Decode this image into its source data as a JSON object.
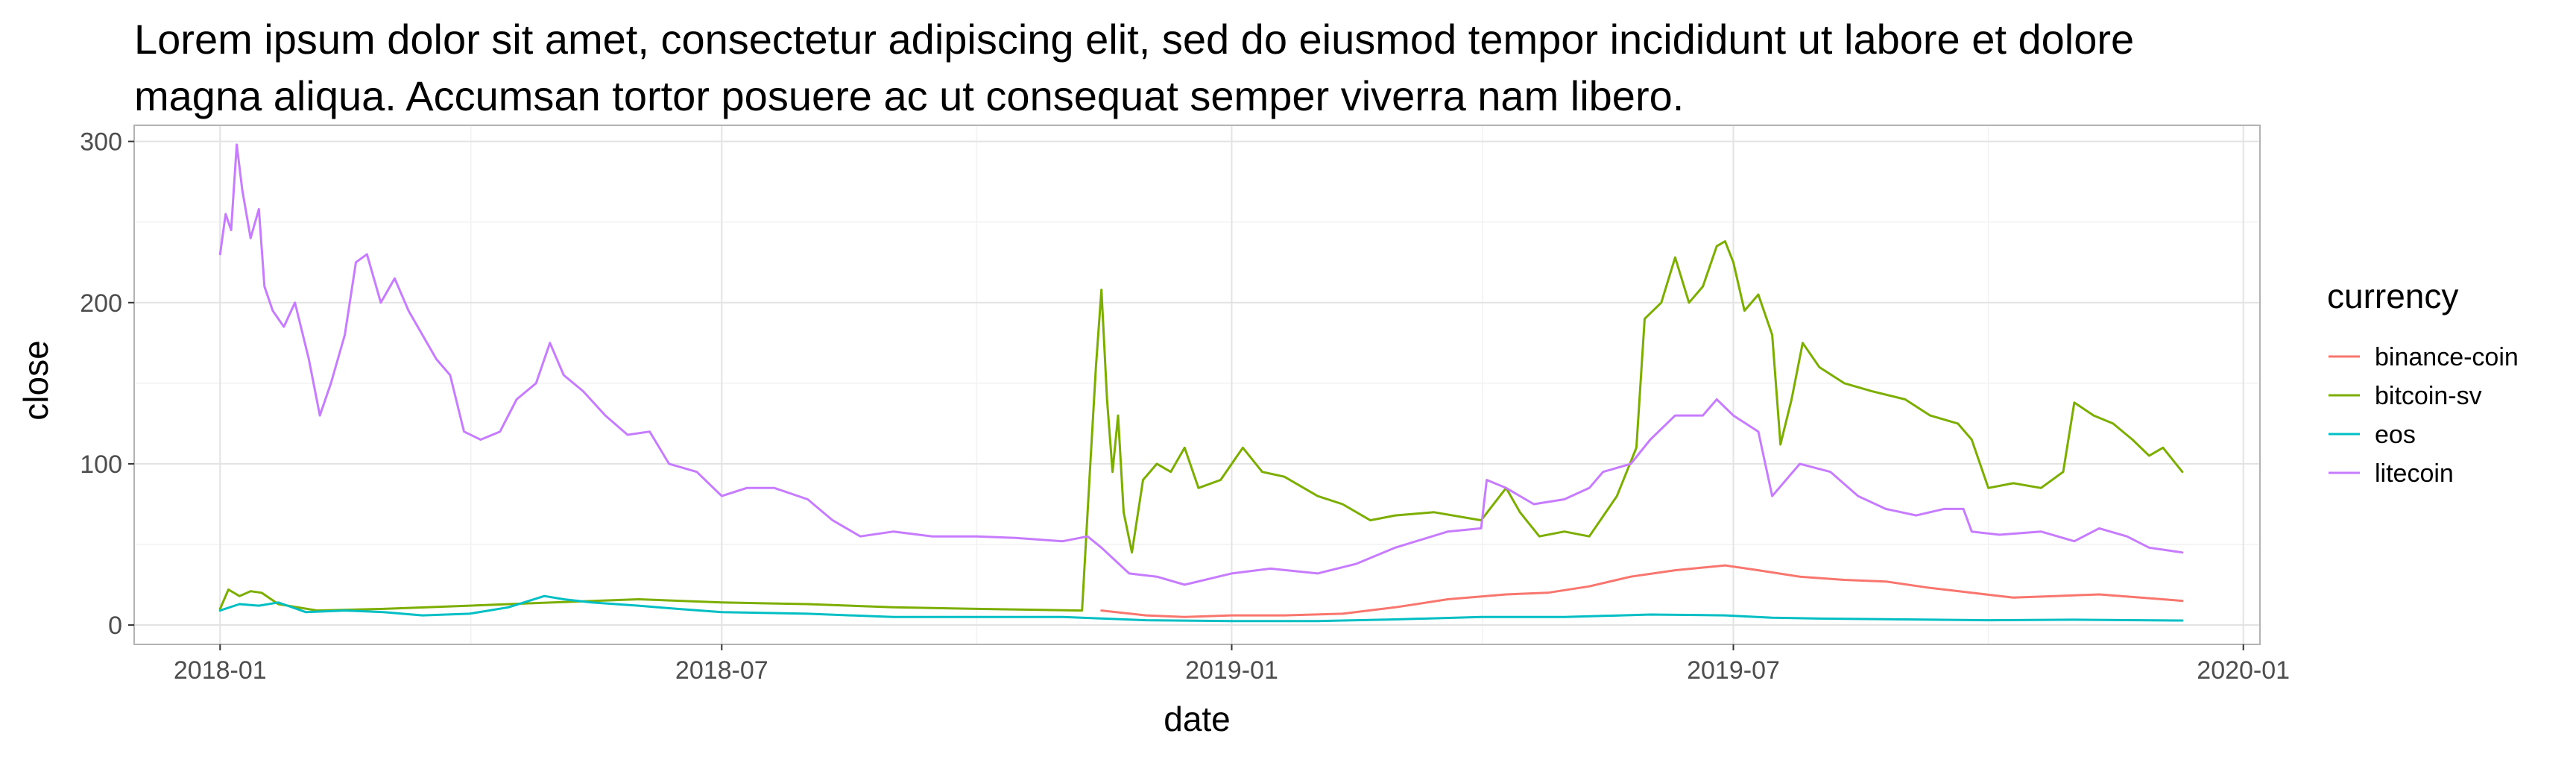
{
  "chart_data": {
    "type": "line",
    "title_lines": [
      "Lorem ipsum dolor sit amet, consectetur adipiscing elit, sed do eiusmod tempor incididunt ut labore et dolore",
      "magna aliqua. Accumsan tortor posuere ac ut consequat semper viverra nam libero."
    ],
    "xlabel": "date",
    "ylabel": "close",
    "xlim": [
      "2017-12-01",
      "2020-01-07"
    ],
    "ylim": [
      -12,
      310
    ],
    "x_ticks": [
      "2018-01-01",
      "2018-07-01",
      "2019-01-01",
      "2019-07-01",
      "2020-01-01"
    ],
    "x_tick_labels": [
      "2018-01",
      "2018-07",
      "2019-01",
      "2019-07",
      "2020-01"
    ],
    "y_ticks": [
      0,
      100,
      200,
      300
    ],
    "y_tick_labels": [
      "0",
      "100",
      "200",
      "300"
    ],
    "grid": true,
    "legend_title": "currency",
    "legend_position": "right",
    "series": [
      {
        "name": "binance-coin",
        "color": "#F8766D",
        "points": [
          [
            "2018-11-15",
            9
          ],
          [
            "2018-12-01",
            6
          ],
          [
            "2018-12-15",
            5
          ],
          [
            "2019-01-01",
            6
          ],
          [
            "2019-01-20",
            6
          ],
          [
            "2019-02-10",
            7
          ],
          [
            "2019-03-01",
            11
          ],
          [
            "2019-03-20",
            16
          ],
          [
            "2019-04-10",
            19
          ],
          [
            "2019-04-25",
            20
          ],
          [
            "2019-05-10",
            24
          ],
          [
            "2019-05-25",
            30
          ],
          [
            "2019-06-10",
            34
          ],
          [
            "2019-06-28",
            37
          ],
          [
            "2019-07-10",
            34
          ],
          [
            "2019-07-25",
            30
          ],
          [
            "2019-08-10",
            28
          ],
          [
            "2019-08-25",
            27
          ],
          [
            "2019-09-10",
            23
          ],
          [
            "2019-09-25",
            20
          ],
          [
            "2019-10-10",
            17
          ],
          [
            "2019-10-25",
            18
          ],
          [
            "2019-11-10",
            19
          ],
          [
            "2019-11-25",
            17
          ],
          [
            "2019-12-10",
            15
          ]
        ]
      },
      {
        "name": "bitcoin-sv",
        "color": "#7CAE00",
        "points": [
          [
            "2018-01-01",
            10
          ],
          [
            "2018-01-04",
            22
          ],
          [
            "2018-01-08",
            18
          ],
          [
            "2018-01-12",
            21
          ],
          [
            "2018-01-16",
            20
          ],
          [
            "2018-01-22",
            13
          ],
          [
            "2018-02-05",
            9
          ],
          [
            "2018-03-01",
            10
          ],
          [
            "2018-04-01",
            12
          ],
          [
            "2018-05-01",
            14
          ],
          [
            "2018-06-01",
            16
          ],
          [
            "2018-07-01",
            14
          ],
          [
            "2018-08-01",
            13
          ],
          [
            "2018-09-01",
            11
          ],
          [
            "2018-10-01",
            10
          ],
          [
            "2018-11-08",
            9
          ],
          [
            "2018-11-11",
            100
          ],
          [
            "2018-11-13",
            160
          ],
          [
            "2018-11-15",
            208
          ],
          [
            "2018-11-17",
            140
          ],
          [
            "2018-11-19",
            95
          ],
          [
            "2018-11-21",
            130
          ],
          [
            "2018-11-23",
            70
          ],
          [
            "2018-11-26",
            45
          ],
          [
            "2018-11-30",
            90
          ],
          [
            "2018-12-05",
            100
          ],
          [
            "2018-12-10",
            95
          ],
          [
            "2018-12-15",
            110
          ],
          [
            "2018-12-20",
            85
          ],
          [
            "2018-12-28",
            90
          ],
          [
            "2019-01-05",
            110
          ],
          [
            "2019-01-12",
            95
          ],
          [
            "2019-01-20",
            92
          ],
          [
            "2019-02-01",
            80
          ],
          [
            "2019-02-10",
            75
          ],
          [
            "2019-02-20",
            65
          ],
          [
            "2019-03-01",
            68
          ],
          [
            "2019-03-15",
            70
          ],
          [
            "2019-04-01",
            65
          ],
          [
            "2019-04-10",
            85
          ],
          [
            "2019-04-15",
            70
          ],
          [
            "2019-04-22",
            55
          ],
          [
            "2019-05-01",
            58
          ],
          [
            "2019-05-10",
            55
          ],
          [
            "2019-05-20",
            80
          ],
          [
            "2019-05-27",
            110
          ],
          [
            "2019-05-30",
            190
          ],
          [
            "2019-06-05",
            200
          ],
          [
            "2019-06-10",
            228
          ],
          [
            "2019-06-15",
            200
          ],
          [
            "2019-06-20",
            210
          ],
          [
            "2019-06-25",
            235
          ],
          [
            "2019-06-28",
            238
          ],
          [
            "2019-07-01",
            225
          ],
          [
            "2019-07-05",
            195
          ],
          [
            "2019-07-10",
            205
          ],
          [
            "2019-07-15",
            180
          ],
          [
            "2019-07-18",
            112
          ],
          [
            "2019-07-22",
            140
          ],
          [
            "2019-07-26",
            175
          ],
          [
            "2019-08-01",
            160
          ],
          [
            "2019-08-10",
            150
          ],
          [
            "2019-08-20",
            145
          ],
          [
            "2019-09-01",
            140
          ],
          [
            "2019-09-10",
            130
          ],
          [
            "2019-09-20",
            125
          ],
          [
            "2019-09-25",
            115
          ],
          [
            "2019-10-01",
            85
          ],
          [
            "2019-10-10",
            88
          ],
          [
            "2019-10-20",
            85
          ],
          [
            "2019-10-28",
            95
          ],
          [
            "2019-11-01",
            138
          ],
          [
            "2019-11-08",
            130
          ],
          [
            "2019-11-15",
            125
          ],
          [
            "2019-11-22",
            115
          ],
          [
            "2019-11-28",
            105
          ],
          [
            "2019-12-03",
            110
          ],
          [
            "2019-12-10",
            95
          ]
        ]
      },
      {
        "name": "eos",
        "color": "#00BFC4",
        "points": [
          [
            "2018-01-01",
            9
          ],
          [
            "2018-01-08",
            13
          ],
          [
            "2018-01-15",
            12
          ],
          [
            "2018-01-22",
            14
          ],
          [
            "2018-02-01",
            8
          ],
          [
            "2018-02-15",
            9
          ],
          [
            "2018-03-01",
            8
          ],
          [
            "2018-03-15",
            6
          ],
          [
            "2018-04-01",
            7
          ],
          [
            "2018-04-15",
            11
          ],
          [
            "2018-04-28",
            18
          ],
          [
            "2018-05-05",
            16
          ],
          [
            "2018-05-15",
            14
          ],
          [
            "2018-06-01",
            12
          ],
          [
            "2018-06-15",
            10
          ],
          [
            "2018-07-01",
            8
          ],
          [
            "2018-08-01",
            7
          ],
          [
            "2018-09-01",
            5
          ],
          [
            "2018-10-01",
            5
          ],
          [
            "2018-11-01",
            5
          ],
          [
            "2018-12-01",
            3
          ],
          [
            "2019-01-01",
            2.5
          ],
          [
            "2019-02-01",
            2.5
          ],
          [
            "2019-03-01",
            3.5
          ],
          [
            "2019-04-01",
            5
          ],
          [
            "2019-05-01",
            5
          ],
          [
            "2019-06-01",
            6.5
          ],
          [
            "2019-06-28",
            6
          ],
          [
            "2019-07-15",
            4.5
          ],
          [
            "2019-08-01",
            4
          ],
          [
            "2019-09-01",
            3.5
          ],
          [
            "2019-10-01",
            3
          ],
          [
            "2019-11-01",
            3.3
          ],
          [
            "2019-12-10",
            2.8
          ]
        ]
      },
      {
        "name": "litecoin",
        "color": "#C77CFF",
        "points": [
          [
            "2018-01-01",
            230
          ],
          [
            "2018-01-03",
            255
          ],
          [
            "2018-01-05",
            245
          ],
          [
            "2018-01-07",
            298
          ],
          [
            "2018-01-09",
            270
          ],
          [
            "2018-01-12",
            240
          ],
          [
            "2018-01-15",
            258
          ],
          [
            "2018-01-17",
            210
          ],
          [
            "2018-01-20",
            195
          ],
          [
            "2018-01-24",
            185
          ],
          [
            "2018-01-28",
            200
          ],
          [
            "2018-02-02",
            165
          ],
          [
            "2018-02-06",
            130
          ],
          [
            "2018-02-10",
            150
          ],
          [
            "2018-02-15",
            180
          ],
          [
            "2018-02-19",
            225
          ],
          [
            "2018-02-23",
            230
          ],
          [
            "2018-02-28",
            200
          ],
          [
            "2018-03-05",
            215
          ],
          [
            "2018-03-10",
            195
          ],
          [
            "2018-03-15",
            180
          ],
          [
            "2018-03-20",
            165
          ],
          [
            "2018-03-25",
            155
          ],
          [
            "2018-03-30",
            120
          ],
          [
            "2018-04-05",
            115
          ],
          [
            "2018-04-12",
            120
          ],
          [
            "2018-04-18",
            140
          ],
          [
            "2018-04-25",
            150
          ],
          [
            "2018-04-30",
            175
          ],
          [
            "2018-05-05",
            155
          ],
          [
            "2018-05-12",
            145
          ],
          [
            "2018-05-20",
            130
          ],
          [
            "2018-05-28",
            118
          ],
          [
            "2018-06-05",
            120
          ],
          [
            "2018-06-12",
            100
          ],
          [
            "2018-06-22",
            95
          ],
          [
            "2018-07-01",
            80
          ],
          [
            "2018-07-10",
            85
          ],
          [
            "2018-07-20",
            85
          ],
          [
            "2018-08-01",
            78
          ],
          [
            "2018-08-10",
            65
          ],
          [
            "2018-08-20",
            55
          ],
          [
            "2018-09-01",
            58
          ],
          [
            "2018-09-15",
            55
          ],
          [
            "2018-10-01",
            55
          ],
          [
            "2018-10-15",
            54
          ],
          [
            "2018-11-01",
            52
          ],
          [
            "2018-11-10",
            55
          ],
          [
            "2018-11-15",
            48
          ],
          [
            "2018-11-20",
            40
          ],
          [
            "2018-11-25",
            32
          ],
          [
            "2018-12-05",
            30
          ],
          [
            "2018-12-15",
            25
          ],
          [
            "2019-01-01",
            32
          ],
          [
            "2019-01-15",
            35
          ],
          [
            "2019-02-01",
            32
          ],
          [
            "2019-02-15",
            38
          ],
          [
            "2019-03-01",
            48
          ],
          [
            "2019-03-20",
            58
          ],
          [
            "2019-04-01",
            60
          ],
          [
            "2019-04-03",
            90
          ],
          [
            "2019-04-10",
            85
          ],
          [
            "2019-04-20",
            75
          ],
          [
            "2019-05-01",
            78
          ],
          [
            "2019-05-10",
            85
          ],
          [
            "2019-05-15",
            95
          ],
          [
            "2019-05-25",
            100
          ],
          [
            "2019-06-01",
            115
          ],
          [
            "2019-06-10",
            130
          ],
          [
            "2019-06-20",
            130
          ],
          [
            "2019-06-25",
            140
          ],
          [
            "2019-07-01",
            130
          ],
          [
            "2019-07-10",
            120
          ],
          [
            "2019-07-15",
            80
          ],
          [
            "2019-07-25",
            100
          ],
          [
            "2019-08-05",
            95
          ],
          [
            "2019-08-15",
            80
          ],
          [
            "2019-08-25",
            72
          ],
          [
            "2019-09-05",
            68
          ],
          [
            "2019-09-15",
            72
          ],
          [
            "2019-09-22",
            72
          ],
          [
            "2019-09-25",
            58
          ],
          [
            "2019-10-05",
            56
          ],
          [
            "2019-10-20",
            58
          ],
          [
            "2019-11-01",
            52
          ],
          [
            "2019-11-10",
            60
          ],
          [
            "2019-11-20",
            55
          ],
          [
            "2019-11-28",
            48
          ],
          [
            "2019-12-10",
            45
          ]
        ]
      }
    ]
  }
}
